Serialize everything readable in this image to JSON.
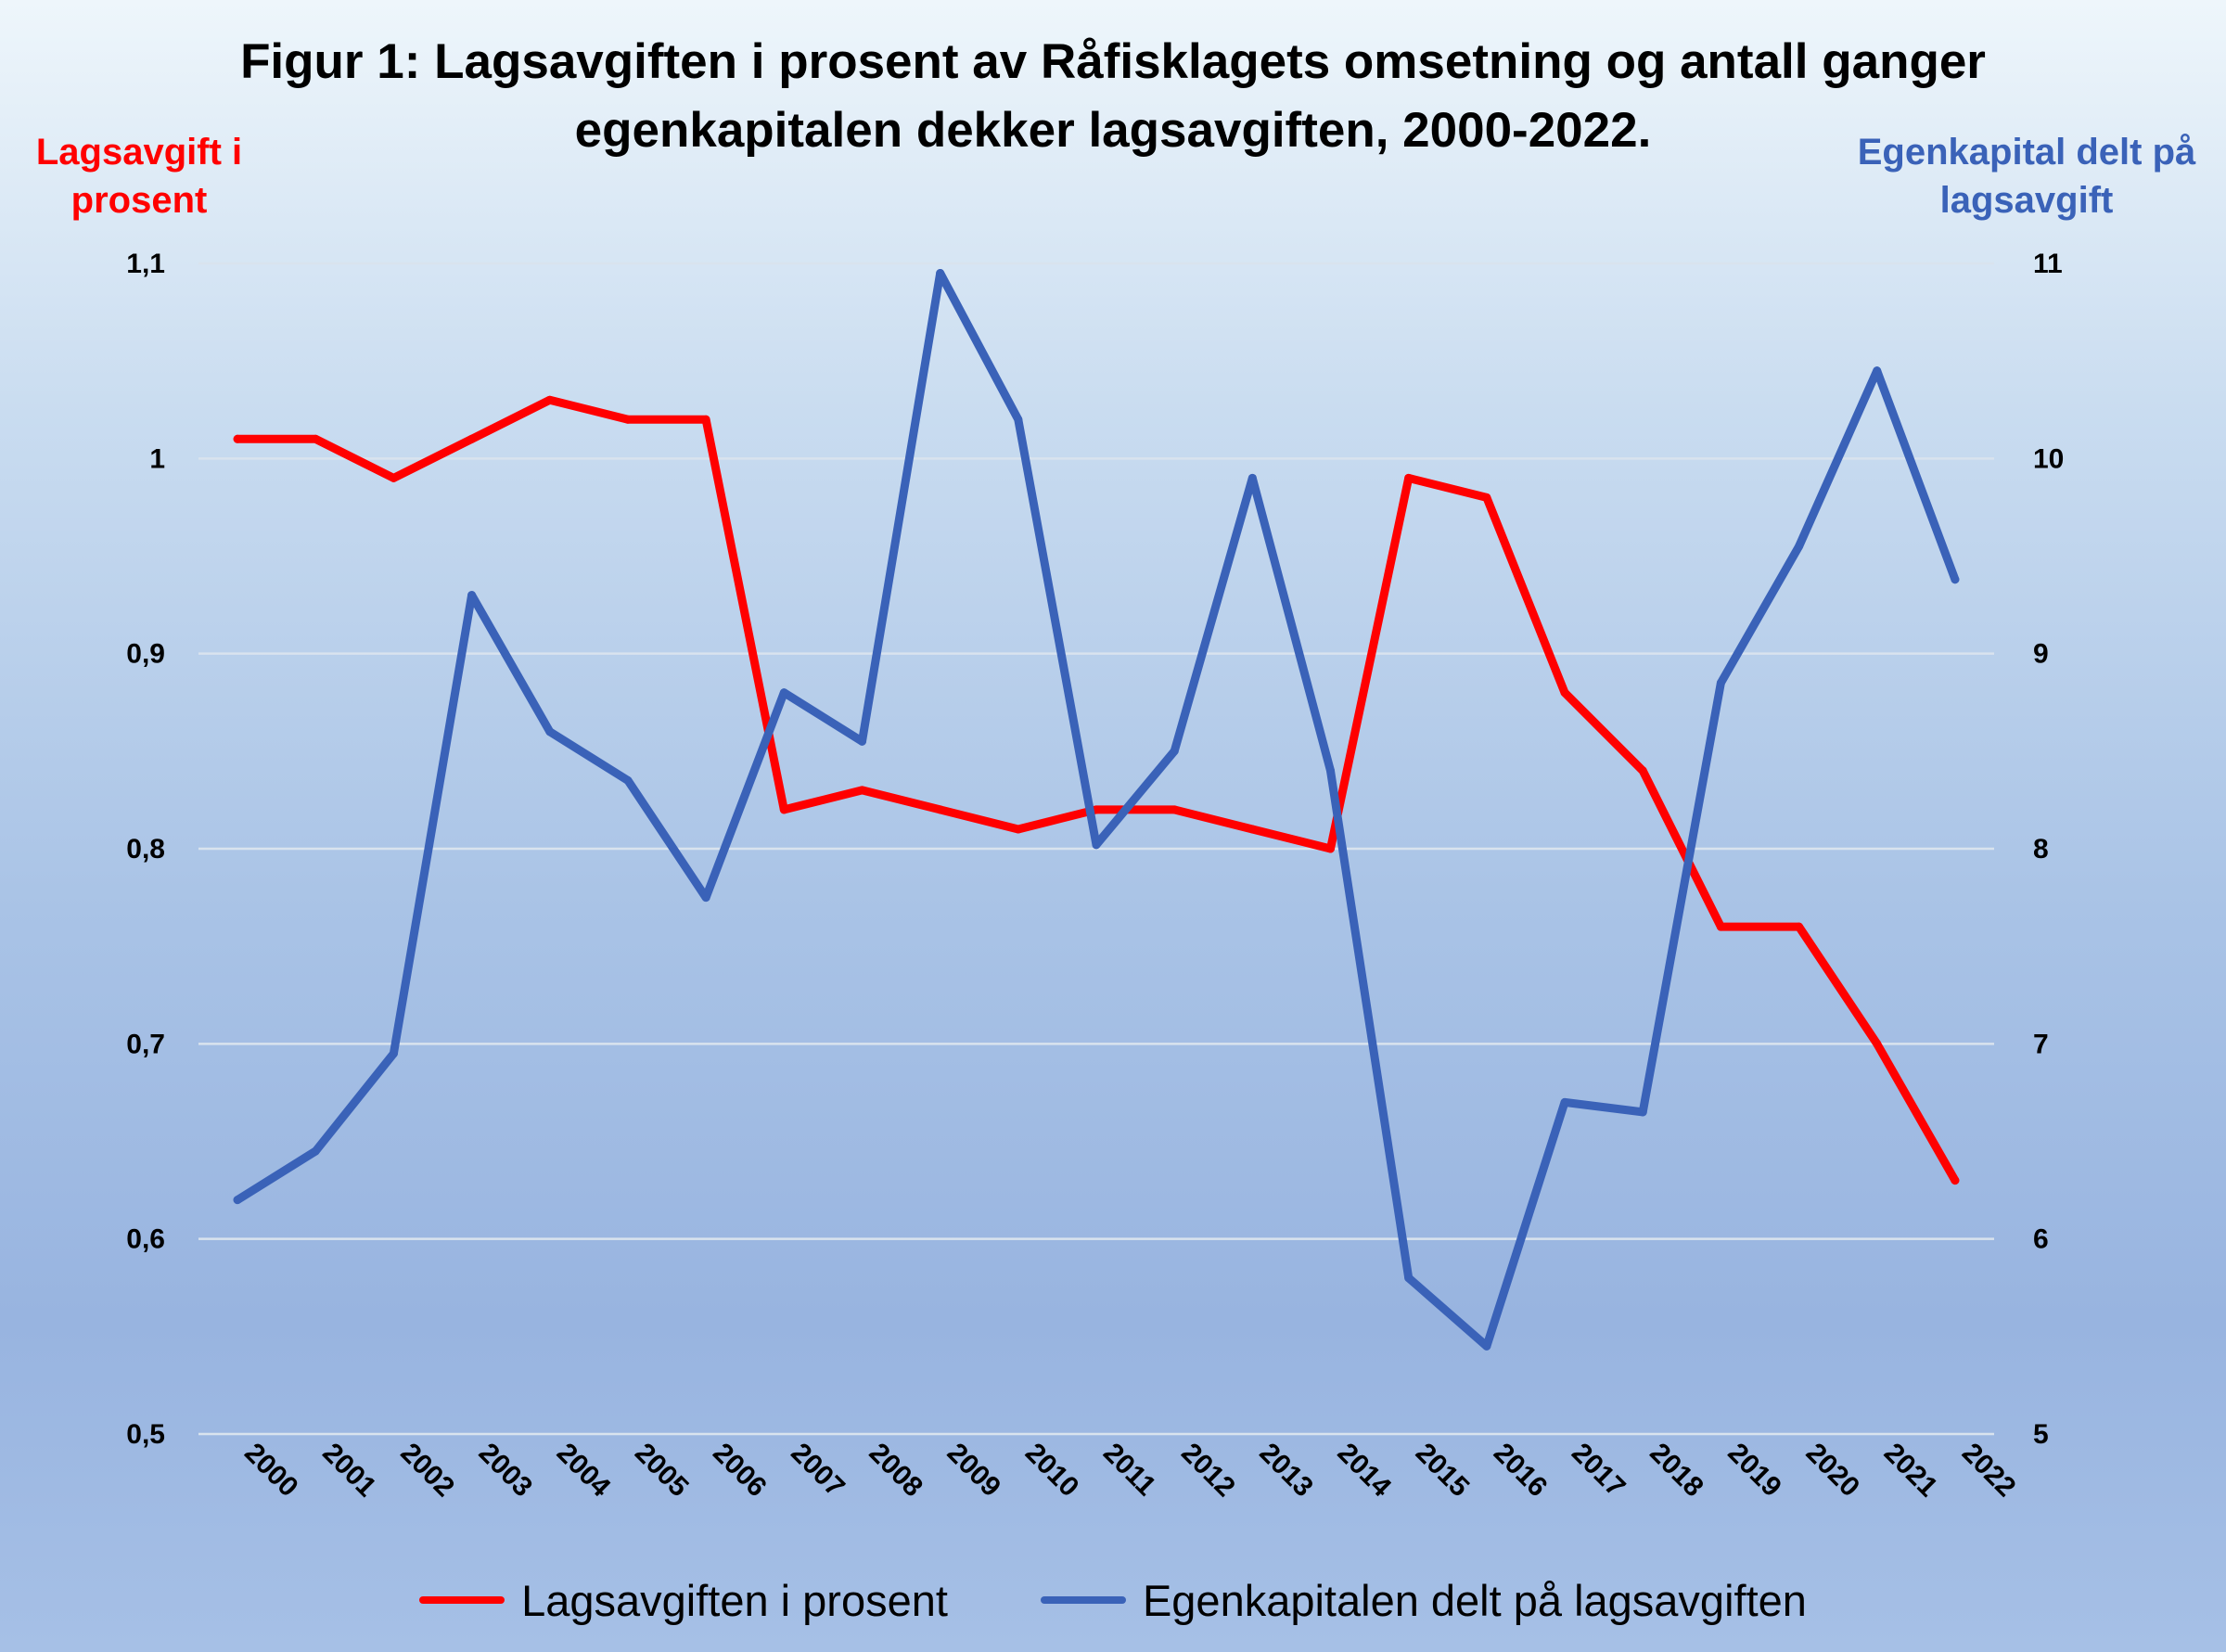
{
  "chart_data": {
    "type": "line",
    "title": "Figur 1: Lagsavgiften i prosent av Råfisklagets omsetning og antall ganger egenkapitalen dekker lagsavgiften, 2000-2022.",
    "ylabel": "Lagsavgift i prosent",
    "y2label": "Egenkapital delt på lagsavgift",
    "x": [
      "2000",
      "2001",
      "2002",
      "2003",
      "2004",
      "2005",
      "2006",
      "2007",
      "2008",
      "2009",
      "2010",
      "2011",
      "2012",
      "2013",
      "2014",
      "2015",
      "2016",
      "2017",
      "2018",
      "2019",
      "2020",
      "2021",
      "2022"
    ],
    "ylim": [
      0.5,
      1.1
    ],
    "y2lim": [
      5,
      11
    ],
    "yticks": [
      "0,5",
      "0,6",
      "0,7",
      "0,8",
      "0,9",
      "1",
      "1,1"
    ],
    "y2ticks": [
      "5",
      "6",
      "7",
      "8",
      "9",
      "10",
      "11"
    ],
    "grid": true,
    "legend_position": "bottom",
    "series": [
      {
        "name": "Lagsavgiften i prosent",
        "axis": "left",
        "color": "#ff0000",
        "values": [
          1.01,
          1.01,
          0.99,
          1.01,
          1.03,
          1.02,
          1.02,
          0.82,
          0.83,
          0.82,
          0.81,
          0.82,
          0.82,
          0.81,
          0.8,
          0.99,
          0.98,
          0.88,
          0.84,
          0.76,
          0.76,
          0.7,
          0.63
        ]
      },
      {
        "name": "Egenkapitalen delt på lagsavgiften",
        "axis": "right",
        "color": "#3a62b8",
        "values": [
          6.2,
          6.45,
          6.95,
          9.3,
          8.6,
          8.35,
          7.75,
          8.8,
          8.55,
          10.95,
          10.2,
          8.02,
          8.5,
          9.9,
          8.4,
          5.8,
          5.45,
          6.7,
          6.65,
          8.85,
          9.55,
          10.45,
          9.38
        ]
      }
    ]
  }
}
